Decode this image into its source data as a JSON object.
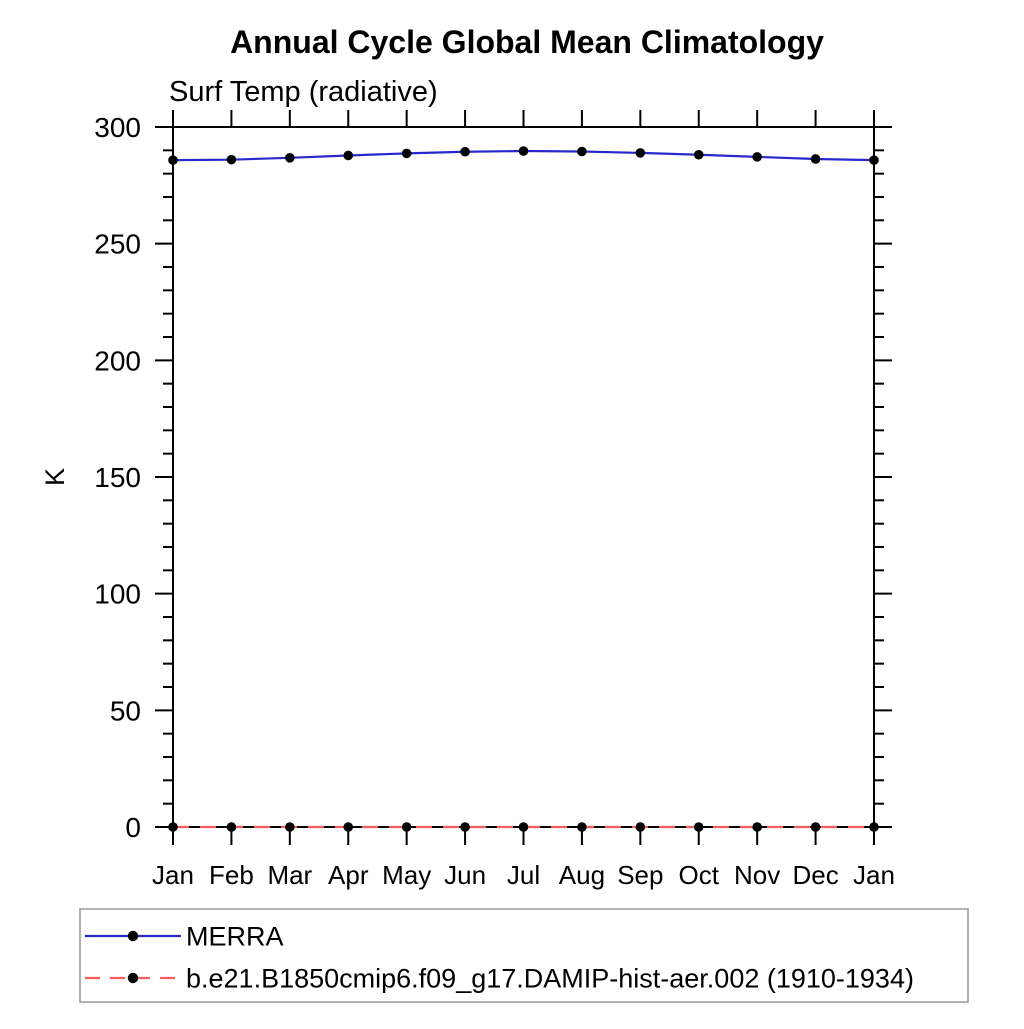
{
  "page": {
    "background": "#ffffff",
    "axis_color": "#000000",
    "legend_border_color": "#999999"
  },
  "chart_data": {
    "type": "line",
    "title": "Annual Cycle Global Mean Climatology",
    "subtitle": "Surf Temp (radiative)",
    "xlabel": "",
    "ylabel": "K",
    "categories": [
      "Jan",
      "Feb",
      "Mar",
      "Apr",
      "May",
      "Jun",
      "Jul",
      "Aug",
      "Sep",
      "Oct",
      "Nov",
      "Dec",
      "Jan"
    ],
    "ylim": [
      0,
      300
    ],
    "y_major_step": 50,
    "y_minor_step": 10,
    "y_major_ticks": [
      0,
      50,
      100,
      150,
      200,
      250,
      300
    ],
    "grid": false,
    "legend_position": "bottom-left-box",
    "series": [
      {
        "name": "MERRA",
        "color": "#2828cc",
        "line_style": "solid",
        "marker": "circle",
        "marker_color": "#000000",
        "values": [
          285.8,
          286.0,
          286.8,
          287.8,
          288.7,
          289.4,
          289.7,
          289.5,
          288.9,
          288.1,
          287.2,
          286.3,
          285.8
        ]
      },
      {
        "name": "b.e21.B1850cmip6.f09_g17.DAMIP-hist-aer.002 (1910-1934)",
        "color": "#f85c5c",
        "line_style": "dashed",
        "marker": "circle",
        "marker_color": "#000000",
        "values": [
          0,
          0,
          0,
          0,
          0,
          0,
          0,
          0,
          0,
          0,
          0,
          0,
          0
        ]
      }
    ]
  }
}
